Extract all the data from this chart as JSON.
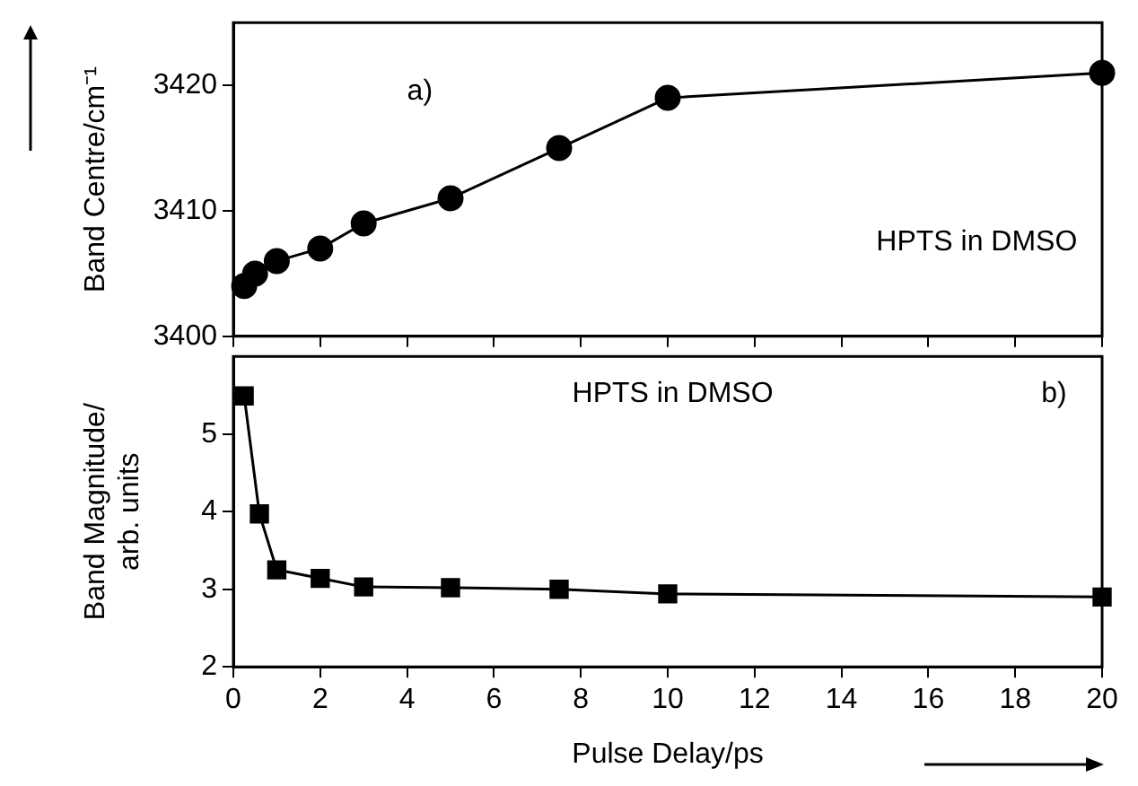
{
  "chart_data": [
    {
      "type": "line",
      "ylabel": "Band Centre/cm⁻¹",
      "annotations": [
        "a)",
        "HPTS in DMSO"
      ],
      "x": [
        0.25,
        0.5,
        1,
        2,
        3,
        5,
        7.5,
        10,
        20
      ],
      "series": [
        {
          "color": "#000000",
          "values": [
            3404,
            3405,
            3406,
            3407,
            3409,
            3411,
            3415,
            3419,
            3421
          ]
        }
      ],
      "xlim": [
        0,
        20
      ],
      "xticks": [
        0,
        2,
        4,
        6,
        8,
        10,
        12,
        14,
        16,
        18,
        20
      ],
      "ylim": [
        3400,
        3425
      ],
      "yticks": [
        3400,
        3410,
        3420
      ],
      "tick_labels": "y",
      "marker": "circle",
      "grid": false,
      "legend": false
    },
    {
      "type": "line",
      "xlabel": "Pulse Delay/ps",
      "ylabel": "Band Magnitude/\narb. units",
      "annotations": [
        "HPTS in DMSO",
        "b)"
      ],
      "x": [
        0.25,
        0.6,
        1,
        2,
        3,
        5,
        7.5,
        10,
        20
      ],
      "series": [
        {
          "color": "#000000",
          "values": [
            5.49,
            3.97,
            3.25,
            3.14,
            3.03,
            3.02,
            3.0,
            2.94,
            2.9
          ]
        }
      ],
      "xlim": [
        0,
        20
      ],
      "xticks": [
        0,
        2,
        4,
        6,
        8,
        10,
        12,
        14,
        16,
        18,
        20
      ],
      "ylim": [
        2,
        6
      ],
      "yticks": [
        2,
        3,
        4,
        5
      ],
      "marker": "square",
      "grid": false,
      "legend": false
    }
  ]
}
